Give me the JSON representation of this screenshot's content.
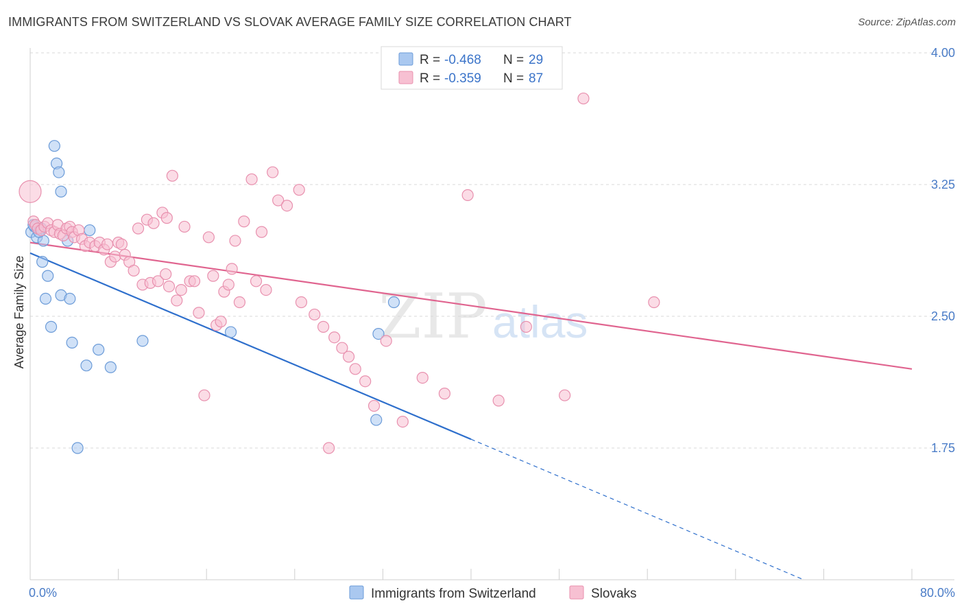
{
  "header": {
    "title": "IMMIGRANTS FROM SWITZERLAND VS SLOVAK AVERAGE FAMILY SIZE CORRELATION CHART",
    "source": "Source: ZipAtlas.com"
  },
  "watermark": {
    "zip": "ZIP",
    "atlas": "atlas"
  },
  "legend": {
    "rows": [
      {
        "r_label": "R = ",
        "r_value": "-0.468",
        "n_label": "N = ",
        "n_value": "29",
        "color": "#aac8f0",
        "stroke": "#6b9bd8"
      },
      {
        "r_label": "R = ",
        "r_value": "-0.359",
        "n_label": "N = ",
        "n_value": "87",
        "color": "#f7c0d2",
        "stroke": "#e890ae"
      }
    ]
  },
  "bottom_legend": {
    "items": [
      {
        "label": "Immigrants from Switzerland",
        "color": "#aac8f0",
        "stroke": "#6b9bd8"
      },
      {
        "label": "Slovaks",
        "color": "#f7c0d2",
        "stroke": "#e890ae"
      }
    ]
  },
  "chart_data": {
    "type": "scatter",
    "ylabel": "Average Family Size",
    "xlim": [
      0,
      80
    ],
    "ylim": [
      1.0,
      4.1
    ],
    "x_tick_labels": [
      "0.0%",
      "80.0%"
    ],
    "y_ticks": [
      1.75,
      2.5,
      3.25,
      4.0
    ],
    "y_tick_labels": [
      "1.75",
      "2.50",
      "3.25",
      "4.00"
    ],
    "grid": "horizontal dashed",
    "series": [
      {
        "name": "Immigrants from Switzerland",
        "color": "#6b9bd8",
        "fill": "#aac8f0",
        "trend_color": "#2e6fcc",
        "trend": {
          "x_start": 0,
          "y_start": 2.86,
          "x_end": 40,
          "y_end": 1.8,
          "dashed_to_x": 80,
          "dashed_to_y": 0.74
        },
        "points": [
          [
            0.1,
            2.98
          ],
          [
            0.4,
            3.01
          ],
          [
            0.6,
            2.95
          ],
          [
            1.0,
            3.0
          ],
          [
            1.2,
            2.93
          ],
          [
            1.1,
            2.81
          ],
          [
            1.4,
            2.6
          ],
          [
            1.6,
            2.73
          ],
          [
            1.9,
            2.44
          ],
          [
            2.2,
            3.47
          ],
          [
            2.4,
            3.37
          ],
          [
            2.6,
            3.32
          ],
          [
            2.8,
            2.62
          ],
          [
            2.8,
            3.21
          ],
          [
            3.4,
            2.93
          ],
          [
            3.6,
            2.6
          ],
          [
            3.8,
            2.35
          ],
          [
            4.3,
            1.75
          ],
          [
            5.1,
            2.22
          ],
          [
            5.4,
            2.99
          ],
          [
            6.2,
            2.31
          ],
          [
            7.3,
            2.21
          ],
          [
            10.2,
            2.36
          ],
          [
            18.2,
            2.41
          ],
          [
            31.4,
            1.91
          ],
          [
            31.6,
            2.4
          ],
          [
            33.0,
            2.58
          ],
          [
            0.3,
            3.02
          ],
          [
            0.8,
            2.98
          ]
        ]
      },
      {
        "name": "Slovaks",
        "color": "#e890ae",
        "fill": "#f7c0d2",
        "trend_color": "#e0648f",
        "trend": {
          "x_start": 0,
          "y_start": 2.92,
          "x_end": 80,
          "y_end": 2.2
        },
        "points": [
          [
            0.0,
            3.21
          ],
          [
            0.3,
            3.04
          ],
          [
            0.5,
            3.02
          ],
          [
            0.7,
            3.0
          ],
          [
            1.0,
            2.99
          ],
          [
            1.3,
            3.01
          ],
          [
            1.6,
            3.03
          ],
          [
            1.9,
            2.99
          ],
          [
            2.2,
            2.98
          ],
          [
            2.5,
            3.02
          ],
          [
            2.7,
            2.97
          ],
          [
            3.0,
            2.96
          ],
          [
            3.3,
            3.0
          ],
          [
            3.6,
            3.01
          ],
          [
            3.8,
            2.98
          ],
          [
            4.0,
            2.95
          ],
          [
            4.4,
            2.99
          ],
          [
            4.7,
            2.94
          ],
          [
            5.0,
            2.9
          ],
          [
            5.4,
            2.92
          ],
          [
            5.9,
            2.9
          ],
          [
            6.3,
            2.92
          ],
          [
            6.7,
            2.88
          ],
          [
            7.0,
            2.91
          ],
          [
            7.3,
            2.81
          ],
          [
            7.7,
            2.84
          ],
          [
            8.0,
            2.92
          ],
          [
            8.3,
            2.91
          ],
          [
            8.6,
            2.85
          ],
          [
            9.0,
            2.81
          ],
          [
            9.4,
            2.76
          ],
          [
            9.8,
            3.0
          ],
          [
            10.2,
            2.68
          ],
          [
            10.6,
            3.05
          ],
          [
            10.9,
            2.69
          ],
          [
            11.2,
            3.03
          ],
          [
            11.6,
            2.7
          ],
          [
            12.0,
            3.09
          ],
          [
            12.3,
            2.74
          ],
          [
            12.6,
            2.67
          ],
          [
            12.9,
            3.3
          ],
          [
            13.3,
            2.59
          ],
          [
            13.7,
            2.65
          ],
          [
            14.0,
            3.01
          ],
          [
            14.5,
            2.7
          ],
          [
            14.9,
            2.7
          ],
          [
            15.3,
            2.52
          ],
          [
            15.8,
            2.05
          ],
          [
            16.2,
            2.95
          ],
          [
            16.6,
            2.73
          ],
          [
            16.9,
            2.45
          ],
          [
            17.3,
            2.47
          ],
          [
            17.6,
            2.64
          ],
          [
            18.0,
            2.68
          ],
          [
            18.3,
            2.77
          ],
          [
            18.6,
            2.93
          ],
          [
            19.0,
            2.58
          ],
          [
            19.4,
            3.04
          ],
          [
            20.1,
            3.28
          ],
          [
            20.5,
            2.7
          ],
          [
            21.0,
            2.98
          ],
          [
            21.4,
            2.65
          ],
          [
            22.0,
            3.32
          ],
          [
            22.5,
            3.16
          ],
          [
            23.3,
            3.13
          ],
          [
            24.4,
            3.22
          ],
          [
            24.6,
            2.58
          ],
          [
            25.8,
            2.51
          ],
          [
            26.6,
            2.44
          ],
          [
            27.6,
            2.38
          ],
          [
            28.3,
            2.32
          ],
          [
            28.9,
            2.27
          ],
          [
            29.5,
            2.2
          ],
          [
            30.4,
            2.13
          ],
          [
            31.2,
            1.99
          ],
          [
            32.3,
            2.36
          ],
          [
            33.8,
            1.9
          ],
          [
            35.6,
            2.15
          ],
          [
            37.6,
            2.06
          ],
          [
            39.7,
            3.19
          ],
          [
            42.5,
            2.02
          ],
          [
            45.0,
            2.44
          ],
          [
            48.5,
            2.05
          ],
          [
            50.2,
            3.74
          ],
          [
            56.6,
            2.58
          ],
          [
            27.1,
            1.75
          ],
          [
            12.4,
            3.06
          ]
        ]
      }
    ]
  }
}
